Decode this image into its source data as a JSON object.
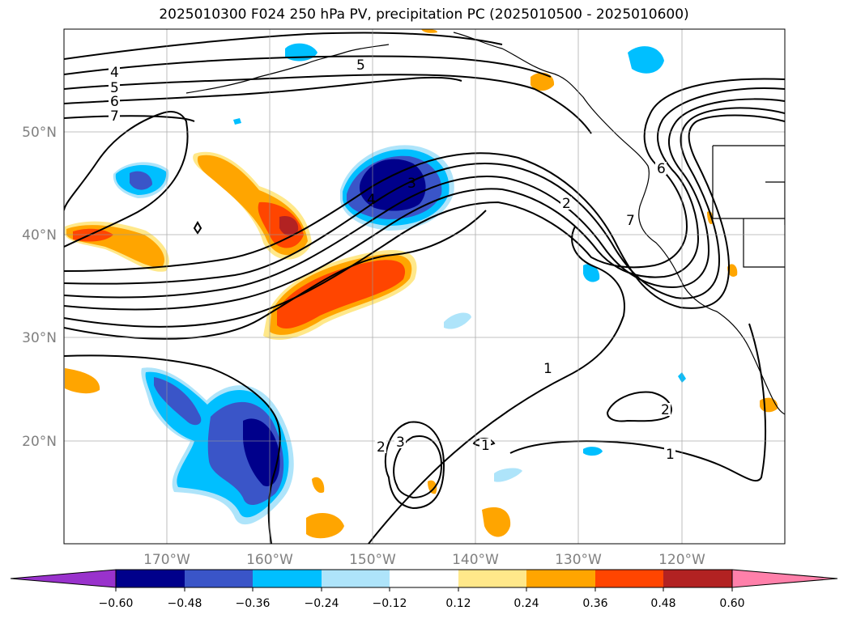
{
  "title": "2025010300 F024 250 hPa PV, precipitation PC (2025010500 - 2025010600)",
  "map": {
    "lon_range": [
      -180,
      -110
    ],
    "lat_range": [
      10,
      60
    ],
    "lat_labels": [
      "50°N",
      "40°N",
      "30°N",
      "20°N"
    ],
    "lon_labels": [
      "170°W",
      "160°W",
      "150°W",
      "140°W",
      "130°W",
      "120°W"
    ],
    "grid": true,
    "contour_labels": [
      "4",
      "5",
      "6",
      "7",
      "5",
      "3",
      "4",
      "2",
      "7",
      "6",
      "1",
      "1",
      "2",
      "3",
      "2",
      "1"
    ]
  },
  "colorbar": {
    "ticks": [
      "−0.60",
      "−0.48",
      "−0.36",
      "−0.24",
      "−0.12",
      "0.12",
      "0.24",
      "0.36",
      "0.48",
      "0.60"
    ],
    "colors": [
      "#9932cc",
      "#00008b",
      "#3a55c8",
      "#00bfff",
      "#aee4fa",
      "#ffffff",
      "#ffe88a",
      "#ffa500",
      "#ff4500",
      "#b22222",
      "#ff80aa"
    ]
  }
}
